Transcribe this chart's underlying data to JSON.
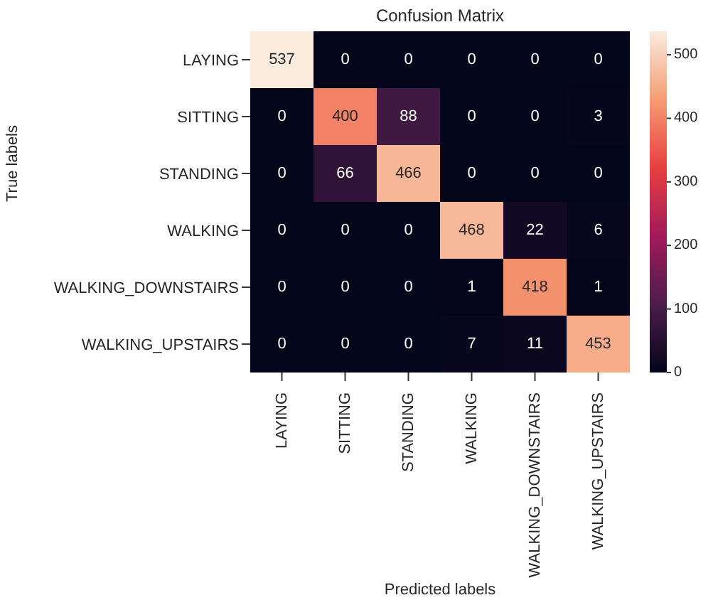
{
  "chart_data": {
    "type": "heatmap",
    "title": "Confusion Matrix",
    "xlabel": "Predicted labels",
    "ylabel": "True labels",
    "categories": [
      "LAYING",
      "SITTING",
      "STANDING",
      "WALKING",
      "WALKING_DOWNSTAIRS",
      "WALKING_UPSTAIRS"
    ],
    "y_categories": [
      "LAYING",
      "SITTING",
      "STANDING",
      "WALKING",
      "WALKING_DOWNSTAIRS",
      "WALKING_UPSTAIRS"
    ],
    "cells": [
      [
        537,
        0,
        0,
        0,
        0,
        0
      ],
      [
        0,
        400,
        88,
        0,
        0,
        3
      ],
      [
        0,
        66,
        466,
        0,
        0,
        0
      ],
      [
        0,
        0,
        0,
        468,
        22,
        6
      ],
      [
        0,
        0,
        0,
        1,
        418,
        1
      ],
      [
        0,
        0,
        0,
        7,
        11,
        453
      ]
    ],
    "clim": [
      0,
      537
    ],
    "cticks": [
      0,
      100,
      200,
      300,
      400,
      500
    ],
    "data_labels": true
  }
}
